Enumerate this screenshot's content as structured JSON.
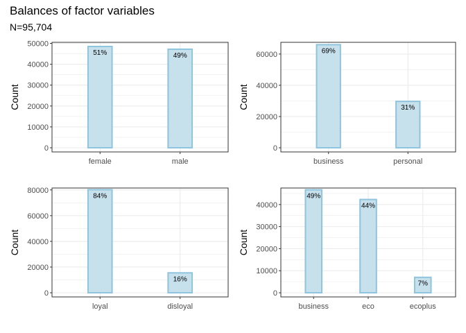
{
  "title": "Balances of factor variables",
  "subtitle": "N=95,704",
  "colors": {
    "bar_fill": "#c6e0ec",
    "bar_stroke": "#8ec4dd",
    "grid": "#ebebeb",
    "panel_border": "#333333"
  },
  "chart_data": [
    {
      "type": "bar",
      "categories": [
        "female",
        "male"
      ],
      "values": [
        48500,
        47200
      ],
      "data_labels": [
        "51%",
        "49%"
      ],
      "ylabel": "Count",
      "ylim": [
        0,
        50500
      ],
      "yticks": [
        0,
        10000,
        20000,
        30000,
        40000,
        50000
      ],
      "grid": true
    },
    {
      "type": "bar",
      "categories": [
        "business",
        "personal"
      ],
      "values": [
        66000,
        29700
      ],
      "data_labels": [
        "69%",
        "31%"
      ],
      "ylabel": "Count",
      "ylim": [
        0,
        67500
      ],
      "yticks": [
        0,
        20000,
        40000,
        60000
      ],
      "grid": true
    },
    {
      "type": "bar",
      "categories": [
        "loyal",
        "disloyal"
      ],
      "values": [
        80200,
        15500
      ],
      "data_labels": [
        "84%",
        "16%"
      ],
      "ylabel": "Count",
      "ylim": [
        0,
        81500
      ],
      "yticks": [
        0,
        20000,
        40000,
        60000,
        80000
      ],
      "grid": true
    },
    {
      "type": "bar",
      "categories": [
        "business",
        "eco",
        "ecoplus"
      ],
      "values": [
        46700,
        42300,
        7000
      ],
      "data_labels": [
        "49%",
        "44%",
        "7%"
      ],
      "ylabel": "Count",
      "ylim": [
        0,
        47500
      ],
      "yticks": [
        0,
        10000,
        20000,
        30000,
        40000
      ],
      "grid": true
    }
  ]
}
